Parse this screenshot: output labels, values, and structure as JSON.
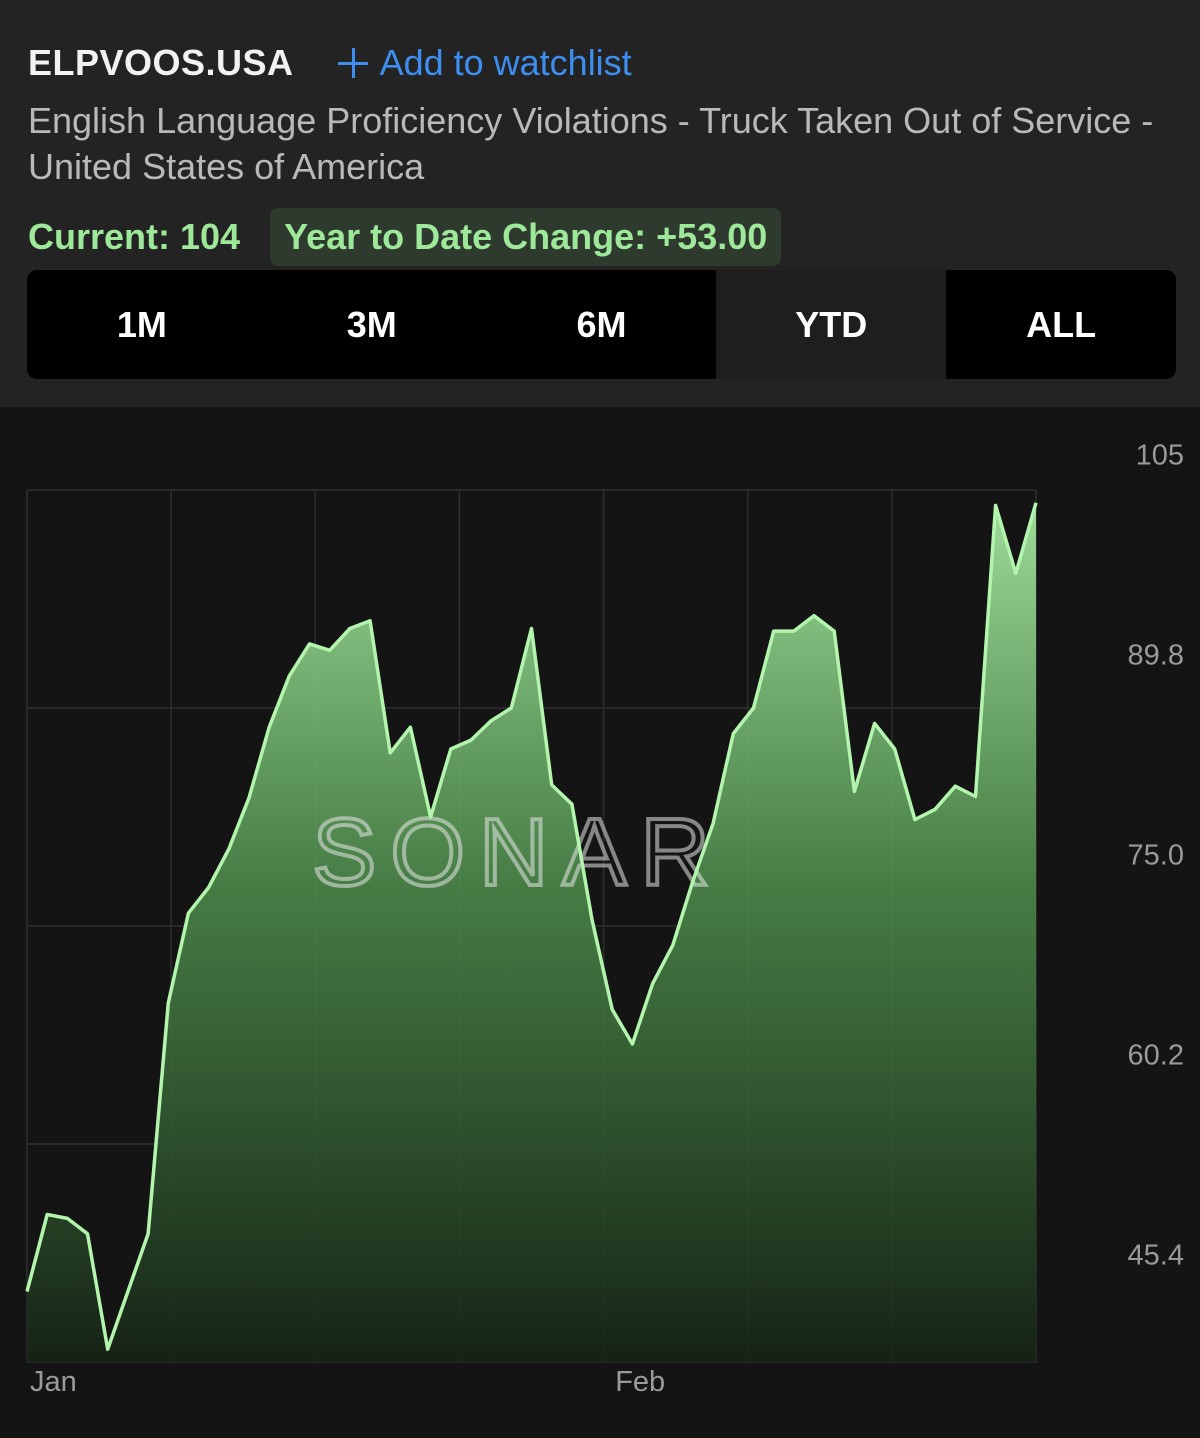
{
  "header": {
    "ticker": "ELPVOOS.USA",
    "watchlist_label": "Add to watchlist",
    "description": "English Language Proficiency Violations - Truck Taken Out of Service - United States of America",
    "current_label": "Current: 104",
    "ytd_label": "Year to Date Change: +53.00"
  },
  "tabs": [
    {
      "label": "1M",
      "active": false
    },
    {
      "label": "3M",
      "active": false
    },
    {
      "label": "6M",
      "active": false
    },
    {
      "label": "YTD",
      "active": true
    },
    {
      "label": "ALL",
      "active": false
    }
  ],
  "colors": {
    "accent_blue": "#3d8ef0",
    "positive_green": "#9ee89a",
    "line": "#b4f5ae",
    "background": "#141414",
    "header_background": "#232323"
  },
  "watermark": "SONAR",
  "chart_data": {
    "type": "area",
    "ylim": [
      37,
      105
    ],
    "y_ticks": [
      "105",
      "89.8",
      "75.0",
      "60.2",
      "45.4"
    ],
    "x_ticks": [
      {
        "label": "Jan",
        "index": 0
      },
      {
        "label": "Feb",
        "index": 29
      }
    ],
    "grid": true,
    "values": [
      42.5,
      48.5,
      48.2,
      47,
      38,
      42.5,
      47,
      65,
      72,
      74,
      77,
      81,
      86.5,
      90.5,
      93,
      92.5,
      94.2,
      94.8,
      84.5,
      86.5,
      79.5,
      84.8,
      85.5,
      87,
      88,
      94.2,
      82,
      80.5,
      71.5,
      64.5,
      61.8,
      66.5,
      69.5,
      74.5,
      79,
      86,
      88,
      94,
      94,
      95.2,
      94,
      81.5,
      86.8,
      84.8,
      79.3,
      80.1,
      81.9,
      81.1,
      103.8,
      98.5,
      104
    ]
  }
}
